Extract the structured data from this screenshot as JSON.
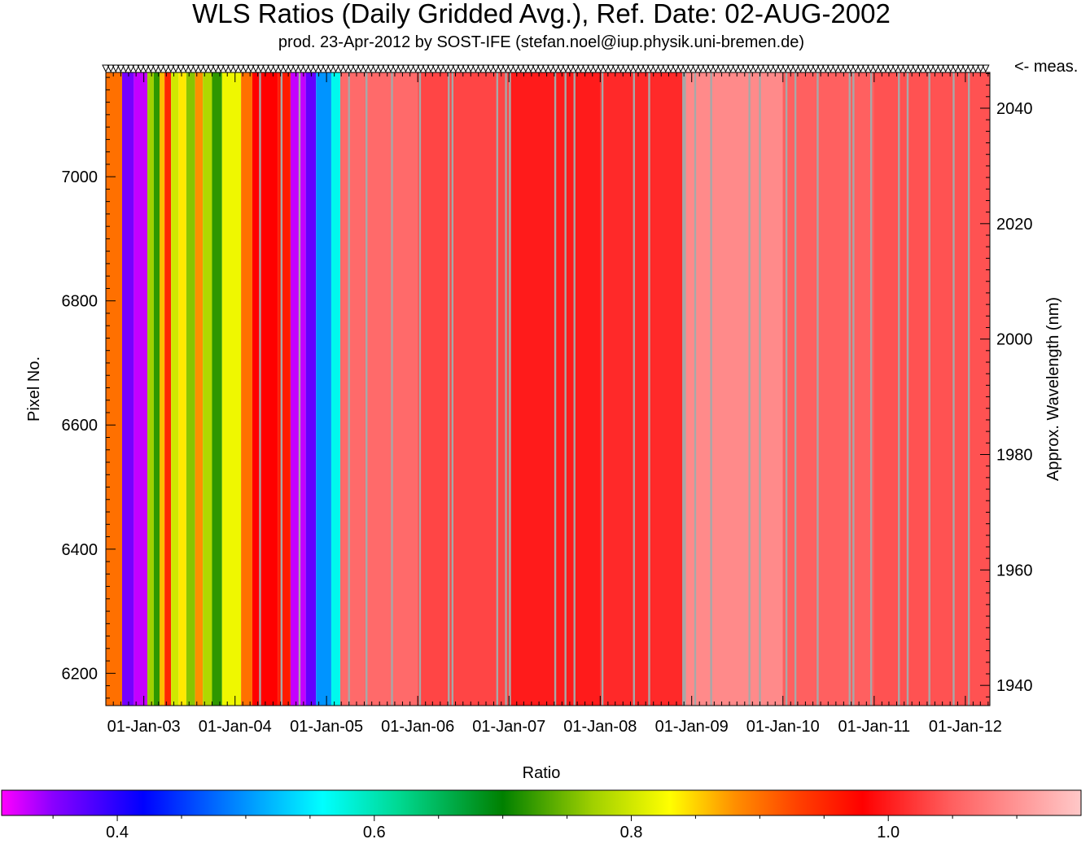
{
  "chart_data": {
    "type": "heatmap",
    "title": "WLS Ratios (Daily Gridded Avg.), Ref. Date: 02-AUG-2002",
    "subtitle": "prod. 23-Apr-2012 by SOST-IFE (stefan.noel@iup.physik.uni-bremen.de)",
    "meas_label": "<- meas.",
    "ylabel": "Pixel No.",
    "y2label": "Approx. Wavelength (nm)",
    "colorbar_label": "Ratio",
    "x_ticks": [
      "01-Jan-03",
      "01-Jan-04",
      "01-Jan-05",
      "01-Jan-06",
      "01-Jan-07",
      "01-Jan-08",
      "01-Jan-09",
      "01-Jan-10",
      "01-Jan-11",
      "01-Jan-12"
    ],
    "xlim": [
      "2002-08-02",
      "2012-04-08"
    ],
    "y_ticks": [
      6200,
      6400,
      6600,
      6800,
      7000
    ],
    "ylim": [
      6148,
      7168
    ],
    "y2_ticks": [
      1940,
      1960,
      1980,
      2000,
      2020,
      2040
    ],
    "y2lim": [
      1936.5,
      2046.2
    ],
    "colorbar_ticks": [
      0.4,
      0.6,
      0.8,
      1.0
    ],
    "colorbar_range": [
      0.31,
      1.15
    ],
    "colorbar_stops": [
      {
        "value": 0.31,
        "color": "#ff00ff"
      },
      {
        "value": 0.35,
        "color": "#8a00ff"
      },
      {
        "value": 0.42,
        "color": "#0000ff"
      },
      {
        "value": 0.48,
        "color": "#0070ff"
      },
      {
        "value": 0.56,
        "color": "#00ffff"
      },
      {
        "value": 0.62,
        "color": "#00d890"
      },
      {
        "value": 0.7,
        "color": "#008000"
      },
      {
        "value": 0.77,
        "color": "#a0d000"
      },
      {
        "value": 0.83,
        "color": "#ffff00"
      },
      {
        "value": 0.88,
        "color": "#ff9000"
      },
      {
        "value": 0.93,
        "color": "#ff4000"
      },
      {
        "value": 0.98,
        "color": "#ff0000"
      },
      {
        "value": 1.05,
        "color": "#ff6060"
      },
      {
        "value": 1.15,
        "color": "#ffc8c8"
      }
    ],
    "columns": [
      {
        "start": "2002-08-02",
        "end": "2002-10-06",
        "ratio": 0.9
      },
      {
        "start": "2002-10-06",
        "end": "2002-11-22",
        "ratio": 0.36
      },
      {
        "start": "2002-11-22",
        "end": "2003-01-15",
        "ratio": 0.33
      },
      {
        "start": "2003-01-15",
        "end": "2003-02-10",
        "ratio": 0.77
      },
      {
        "start": "2003-02-10",
        "end": "2003-03-05",
        "ratio": 0.72
      },
      {
        "start": "2003-03-05",
        "end": "2003-03-25",
        "ratio": 0.86
      },
      {
        "start": "2003-03-25",
        "end": "2003-04-20",
        "ratio": 0.95
      },
      {
        "start": "2003-04-20",
        "end": "2003-05-20",
        "ratio": 0.8
      },
      {
        "start": "2003-05-20",
        "end": "2003-06-20",
        "ratio": 0.84
      },
      {
        "start": "2003-06-20",
        "end": "2003-07-25",
        "ratio": 0.76
      },
      {
        "start": "2003-07-25",
        "end": "2003-08-25",
        "ratio": 0.88
      },
      {
        "start": "2003-08-25",
        "end": "2003-10-01",
        "ratio": 0.78
      },
      {
        "start": "2003-10-01",
        "end": "2003-11-10",
        "ratio": 0.72
      },
      {
        "start": "2003-11-10",
        "end": "2004-01-25",
        "ratio": 0.82
      },
      {
        "start": "2004-01-25",
        "end": "2004-03-10",
        "ratio": 0.9
      },
      {
        "start": "2004-03-10",
        "end": "2004-06-20",
        "ratio": 0.98
      },
      {
        "start": "2004-06-20",
        "end": "2004-08-10",
        "ratio": 0.96
      },
      {
        "start": "2004-08-10",
        "end": "2004-10-10",
        "ratio": 0.33
      },
      {
        "start": "2004-10-10",
        "end": "2004-11-20",
        "ratio": 0.37
      },
      {
        "start": "2004-11-20",
        "end": "2005-01-20",
        "ratio": 0.5
      },
      {
        "start": "2005-01-20",
        "end": "2005-02-25",
        "ratio": 0.57
      },
      {
        "start": "2005-02-25",
        "end": "2006-01-01",
        "ratio": 1.06
      },
      {
        "start": "2006-01-01",
        "end": "2007-01-01",
        "ratio": 1.03
      },
      {
        "start": "2007-01-01",
        "end": "2008-01-01",
        "ratio": 1.0
      },
      {
        "start": "2008-01-01",
        "end": "2008-11-30",
        "ratio": 1.01
      },
      {
        "start": "2008-11-30",
        "end": "2009-12-31",
        "ratio": 1.09
      },
      {
        "start": "2009-12-31",
        "end": "2010-12-31",
        "ratio": 1.05
      },
      {
        "start": "2010-12-31",
        "end": "2012-04-08",
        "ratio": 1.04
      }
    ],
    "gaps": [
      "2004-04-10",
      "2004-07-05",
      "2004-09-15",
      "2005-04-01",
      "2005-06-10",
      "2005-09-20",
      "2006-01-10",
      "2006-05-05",
      "2006-05-20",
      "2006-11-15",
      "2006-12-20",
      "2007-01-05",
      "2007-07-05",
      "2007-08-15",
      "2007-09-20",
      "2008-01-10",
      "2008-05-15",
      "2008-07-15",
      "2008-11-28",
      "2008-12-05",
      "2009-01-15",
      "2009-03-20",
      "2009-08-20",
      "2009-10-01",
      "2010-01-15",
      "2010-02-20",
      "2010-05-20",
      "2010-09-25",
      "2010-10-10",
      "2010-12-20",
      "2011-04-10",
      "2011-05-15",
      "2011-08-10",
      "2011-11-15",
      "2012-01-15"
    ]
  }
}
